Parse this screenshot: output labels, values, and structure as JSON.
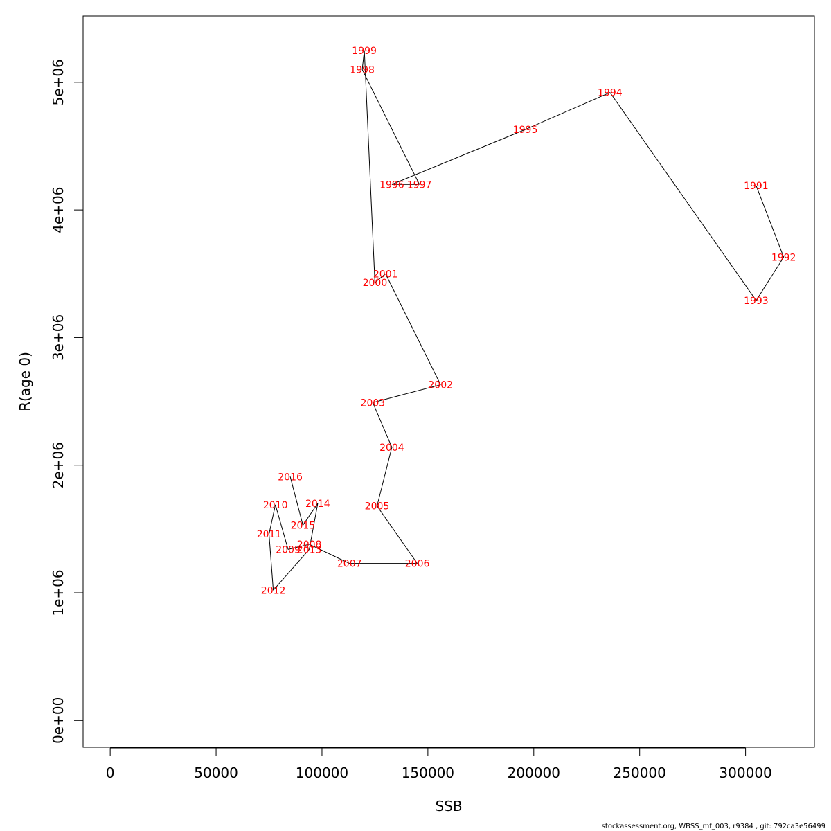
{
  "footer_text": "stockassessment.org, WBSS_mf_003, r9384 , git: 792ca3e56499",
  "chart_data": {
    "type": "scatter",
    "title": "",
    "xlabel": "SSB",
    "ylabel": "R(age 0)",
    "xlim": [
      -12800,
      332500
    ],
    "ylim": [
      -210000,
      5520000
    ],
    "x_ticks": [
      0,
      50000,
      100000,
      150000,
      200000,
      250000,
      300000
    ],
    "x_tick_labels": [
      "0",
      "50000",
      "100000",
      "150000",
      "200000",
      "250000",
      "300000"
    ],
    "y_ticks": [
      0,
      1000000,
      2000000,
      3000000,
      4000000,
      5000000
    ],
    "y_tick_labels": [
      "0e+00",
      "1e+06",
      "2e+06",
      "3e+06",
      "4e+06",
      "5e+06"
    ],
    "grid": false,
    "line_color": "#000000",
    "label_color": "#ff0000",
    "points": [
      {
        "label": "1991",
        "x": 305000,
        "y": 4190000
      },
      {
        "label": "1992",
        "x": 318000,
        "y": 3630000
      },
      {
        "label": "1993",
        "x": 305000,
        "y": 3290000
      },
      {
        "label": "1994",
        "x": 236000,
        "y": 4920000
      },
      {
        "label": "1995",
        "x": 196000,
        "y": 4630000
      },
      {
        "label": "1996",
        "x": 133000,
        "y": 4200000
      },
      {
        "label": "1997",
        "x": 146000,
        "y": 4200000
      },
      {
        "label": "1998",
        "x": 119000,
        "y": 5100000
      },
      {
        "label": "1999",
        "x": 120000,
        "y": 5250000
      },
      {
        "label": "2000",
        "x": 125000,
        "y": 3430000
      },
      {
        "label": "2001",
        "x": 130000,
        "y": 3500000
      },
      {
        "label": "2002",
        "x": 156000,
        "y": 2630000
      },
      {
        "label": "2003",
        "x": 124000,
        "y": 2490000
      },
      {
        "label": "2004",
        "x": 133000,
        "y": 2140000
      },
      {
        "label": "2005",
        "x": 126000,
        "y": 1680000
      },
      {
        "label": "2006",
        "x": 145000,
        "y": 1230000
      },
      {
        "label": "2007",
        "x": 113000,
        "y": 1230000
      },
      {
        "label": "2008",
        "x": 94000,
        "y": 1380000
      },
      {
        "label": "2009",
        "x": 84000,
        "y": 1340000
      },
      {
        "label": "2010",
        "x": 78000,
        "y": 1690000
      },
      {
        "label": "2011",
        "x": 75000,
        "y": 1460000
      },
      {
        "label": "2012",
        "x": 77000,
        "y": 1020000
      },
      {
        "label": "2013",
        "x": 94000,
        "y": 1340000
      },
      {
        "label": "2014",
        "x": 98000,
        "y": 1700000
      },
      {
        "label": "2015",
        "x": 91000,
        "y": 1530000
      },
      {
        "label": "2016",
        "x": 85000,
        "y": 1910000
      }
    ]
  }
}
